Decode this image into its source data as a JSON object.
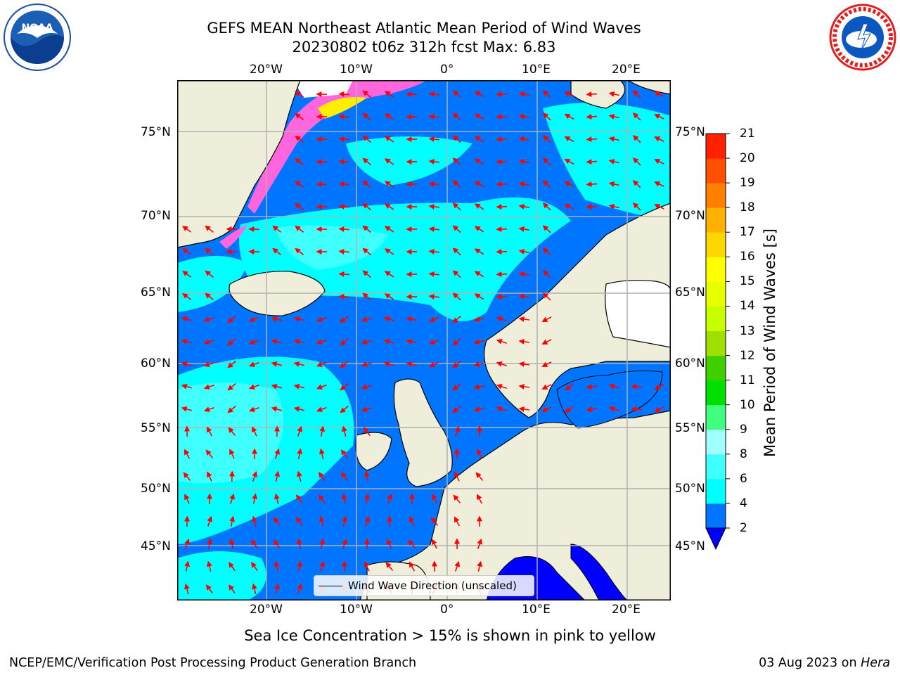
{
  "title": {
    "line1": "GEFS MEAN Northeast Atlantic Mean Period of Wind Waves",
    "line2": "20230802 t06z 312h fcst   Max: 6.83"
  },
  "logos": {
    "left": {
      "icon": "noaa-logo",
      "text": "NOAA"
    },
    "right": {
      "icon": "national-weather-service-logo"
    }
  },
  "axes": {
    "lon_ticks": [
      "20°W",
      "10°W",
      "0°",
      "10°E",
      "20°E"
    ],
    "lat_ticks": [
      "75°N",
      "70°N",
      "65°N",
      "60°N",
      "55°N",
      "50°N",
      "45°N"
    ]
  },
  "legend": {
    "label": "Wind Wave Direction (unscaled)"
  },
  "colorbar": {
    "label": "Mean Period of Wind Waves [s]",
    "levels": [
      "2",
      "4",
      "6",
      "8",
      "9",
      "10",
      "11",
      "12",
      "13",
      "14",
      "15",
      "16",
      "17",
      "18",
      "19",
      "20",
      "21"
    ],
    "colors": [
      "#0075ff",
      "#00ffff",
      "#40ffff",
      "#a0ffff",
      "#40ff80",
      "#00e000",
      "#40d000",
      "#a0e000",
      "#c8ff00",
      "#e8ff00",
      "#ffff00",
      "#ffd700",
      "#ffb000",
      "#ff8000",
      "#ff5000",
      "#ff2000"
    ],
    "under_color": "#0000ff"
  },
  "note": "Sea Ice Concentration > 15% is shown in pink to yellow",
  "footer": {
    "left": "NCEP/EMC/Verification Post Processing Product Generation Branch",
    "right_date": "03 Aug 2023 on",
    "right_host": "Hera"
  },
  "colors": {
    "land": "#efeedb",
    "ocean_low": "#0075ff",
    "ocean_mid": "#00ffff",
    "ocean_high": "#40ffff",
    "ice_pink": "#ff66dd",
    "ice_yellow": "#ffee00",
    "arrow": "#ff0000",
    "grid": "#b0b0b0"
  }
}
